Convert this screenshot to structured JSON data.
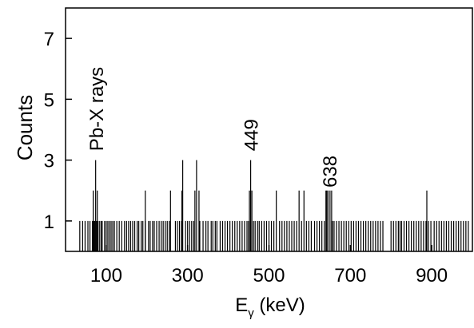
{
  "chart_data": {
    "type": "bar",
    "title": "",
    "xlabel_main": "E",
    "xlabel_sub": "γ",
    "xlabel_unit": " (keV)",
    "ylabel": "Counts",
    "xlim": [
      0,
      1000
    ],
    "ylim": [
      0,
      8
    ],
    "x_ticks": [
      100,
      300,
      500,
      700,
      900
    ],
    "y_ticks": [
      1,
      3,
      5,
      7
    ],
    "grid": false,
    "legend": "none",
    "annotations": [
      {
        "text": "Pb-X rays",
        "x": 75,
        "y": 3.3
      },
      {
        "text": "449",
        "x": 455,
        "y": 3.3
      },
      {
        "text": "638",
        "x": 648,
        "y": 2.1
      }
    ],
    "counts_1_x": [
      35,
      42,
      48,
      55,
      60,
      66,
      70,
      72,
      76,
      80,
      84,
      88,
      90,
      96,
      100,
      104,
      108,
      112,
      116,
      120,
      126,
      132,
      138,
      145,
      150,
      155,
      160,
      165,
      170,
      176,
      180,
      186,
      190,
      196,
      204,
      208,
      214,
      218,
      224,
      230,
      235,
      240,
      245,
      250,
      255,
      270,
      275,
      280,
      285,
      295,
      300,
      305,
      310,
      315,
      330,
      338,
      345,
      350,
      358,
      362,
      368,
      372,
      380,
      386,
      392,
      398,
      404,
      410,
      416,
      422,
      428,
      434,
      440,
      446,
      450,
      462,
      466,
      472,
      476,
      482,
      488,
      494,
      500,
      506,
      512,
      526,
      532,
      538,
      544,
      550,
      556,
      562,
      568,
      580,
      592,
      598,
      604,
      612,
      618,
      624,
      630,
      636,
      656,
      660,
      666,
      672,
      678,
      684,
      690,
      696,
      702,
      708,
      714,
      720,
      726,
      732,
      738,
      744,
      750,
      756,
      762,
      768,
      774,
      780,
      800,
      806,
      812,
      818,
      822,
      826,
      832,
      838,
      844,
      850,
      856,
      862,
      868,
      874,
      880,
      886,
      892,
      898,
      906,
      912,
      918,
      924,
      930,
      936,
      942,
      948,
      954,
      960,
      966,
      972,
      978,
      984,
      990
    ],
    "counts_2_x": [
      68,
      78,
      196,
      258,
      286,
      318,
      328,
      452,
      458,
      518,
      574,
      586,
      640,
      642,
      645,
      650,
      654,
      888
    ],
    "counts_3_x": [
      74,
      288,
      322,
      455
    ]
  }
}
